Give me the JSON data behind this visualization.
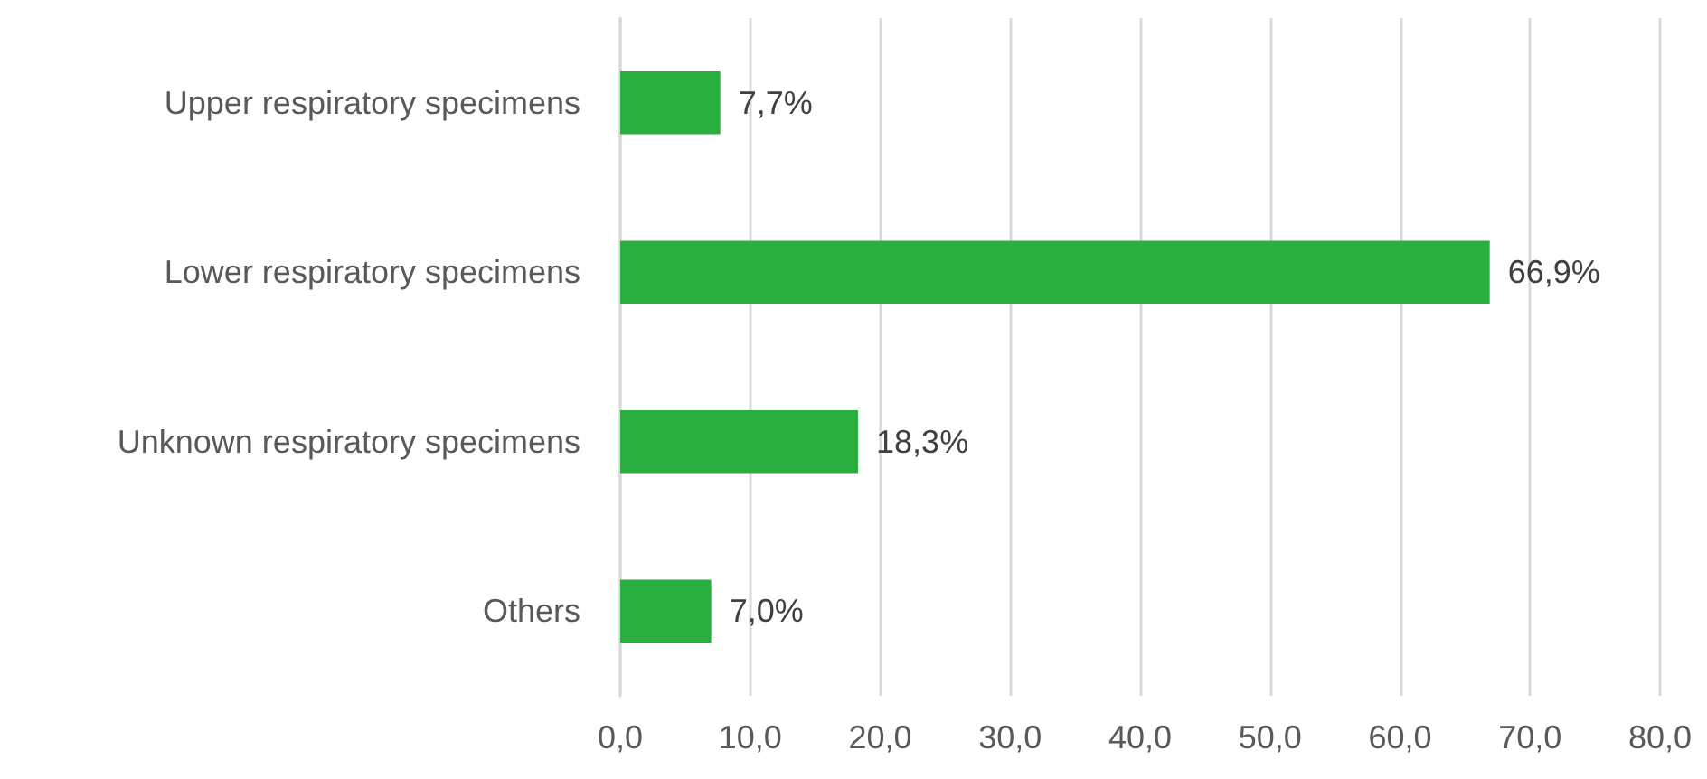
{
  "chart_data": {
    "type": "bar",
    "orientation": "horizontal",
    "categories": [
      "Upper respiratory specimens",
      "Lower respiratory specimens",
      "Unknown respiratory specimens",
      "Others"
    ],
    "values": [
      7.7,
      66.9,
      18.3,
      7.0
    ],
    "value_labels": [
      "7,7%",
      "66,9%",
      "18,3%",
      "7,0%"
    ],
    "color": "#2aae3f",
    "xlim": [
      0,
      80
    ],
    "xticks": [
      {
        "value": 0,
        "label": "0,0"
      },
      {
        "value": 10,
        "label": "10,0"
      },
      {
        "value": 20,
        "label": "20,0"
      },
      {
        "value": 30,
        "label": "30,0"
      },
      {
        "value": 40,
        "label": "40,0"
      },
      {
        "value": 50,
        "label": "50,0"
      },
      {
        "value": 60,
        "label": "60,0"
      },
      {
        "value": 70,
        "label": "70,0"
      },
      {
        "value": 80,
        "label": "80,0"
      }
    ],
    "grid": "x"
  }
}
